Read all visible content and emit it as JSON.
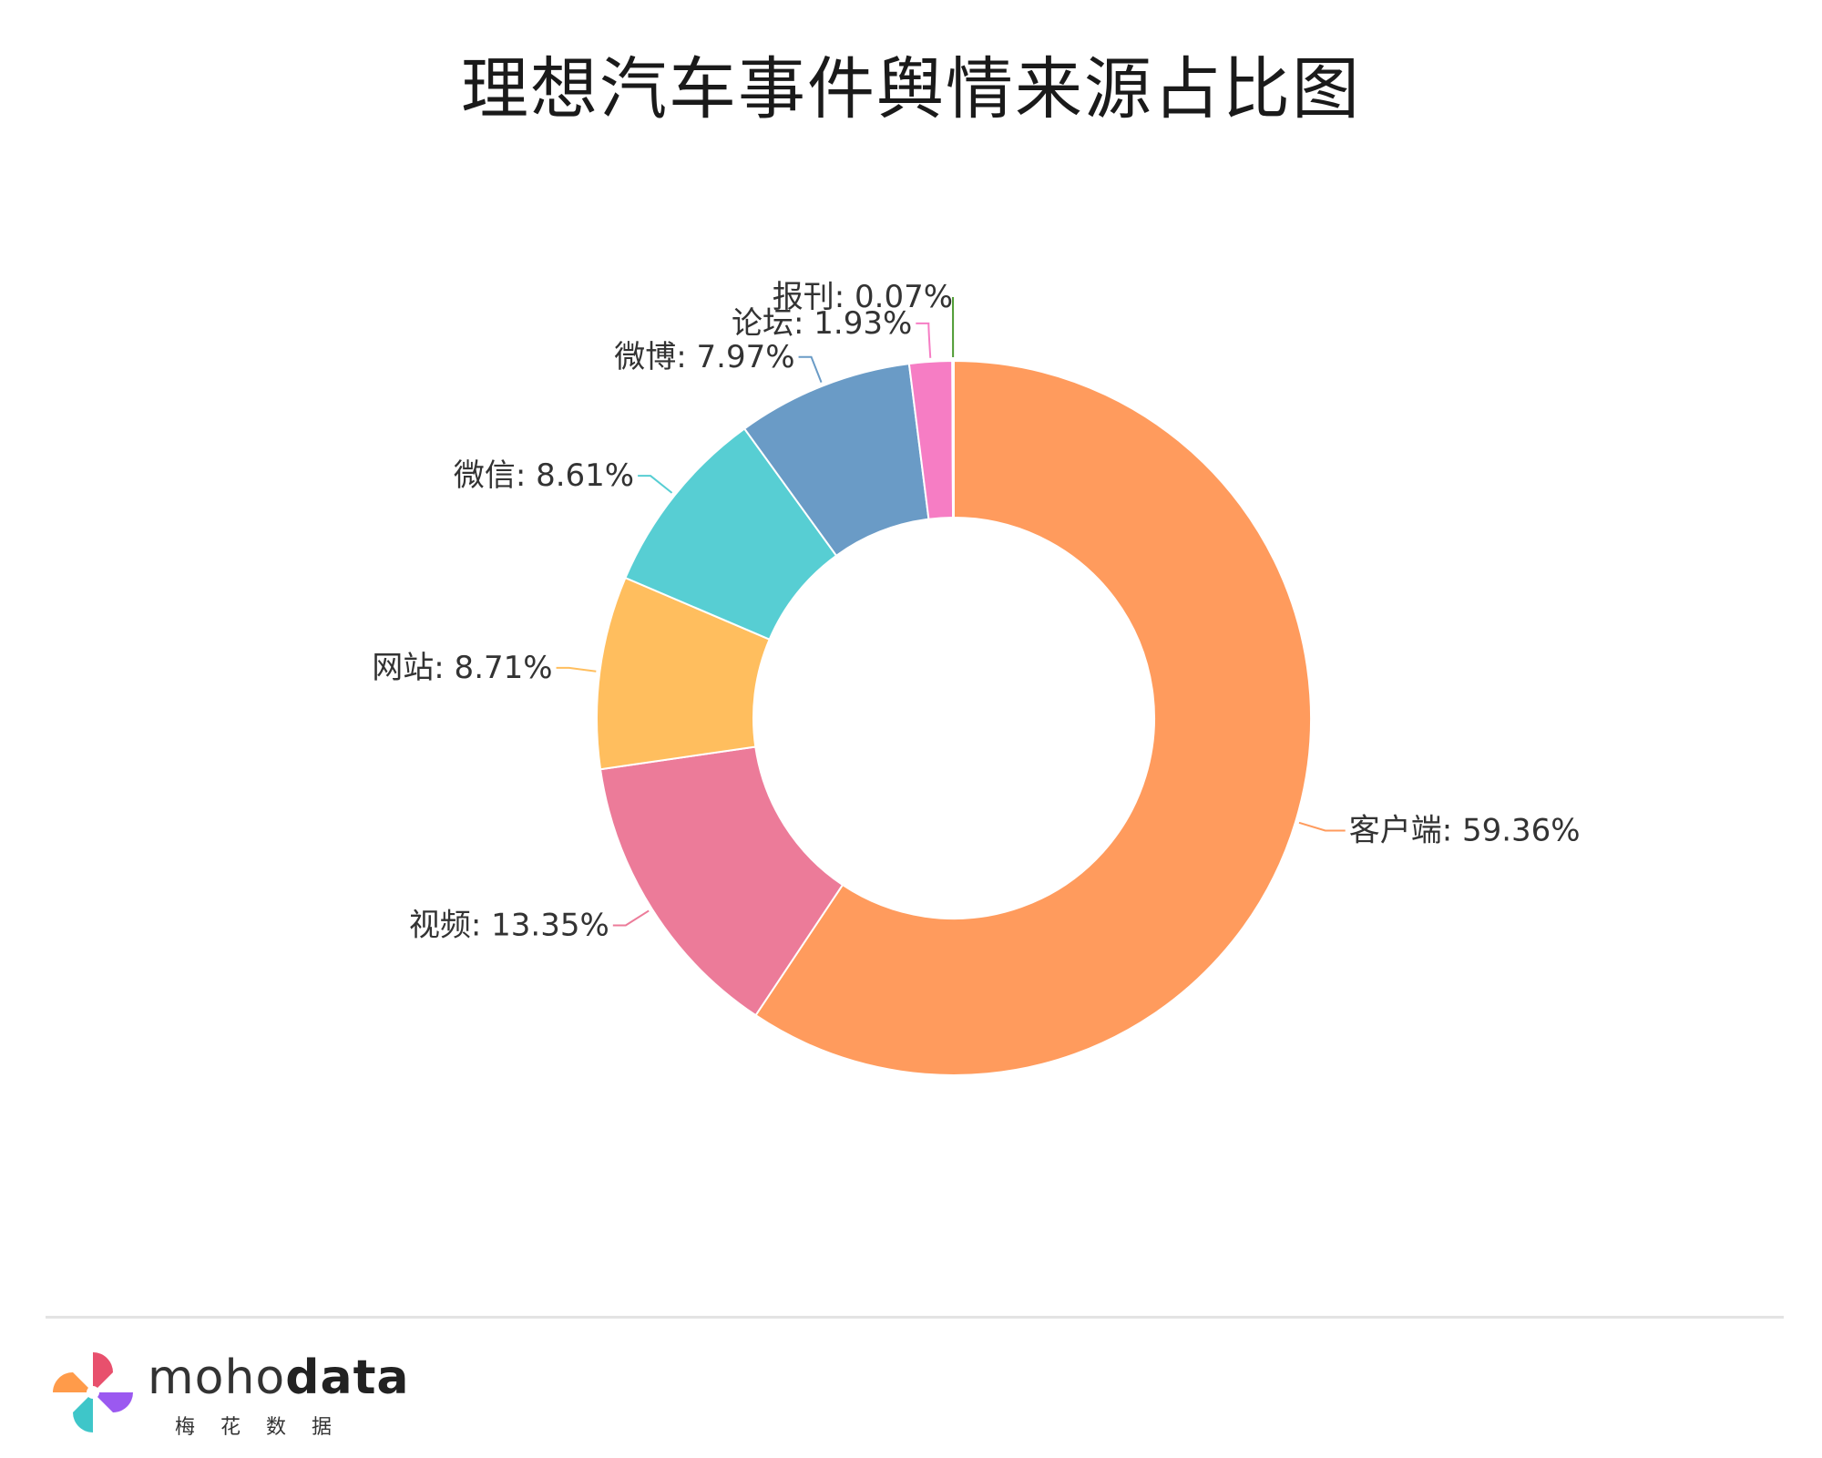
{
  "title": "理想汽车事件舆情来源占比图",
  "chart_data": {
    "type": "pie",
    "donut": true,
    "slices": [
      {
        "name": "客户端",
        "value": 59.36,
        "label": "客户端: 59.36%",
        "color": "#FF9B5D",
        "labelSide": "right"
      },
      {
        "name": "视频",
        "value": 13.35,
        "label": "视频: 13.35%",
        "color": "#EC7B99",
        "labelSide": "left"
      },
      {
        "name": "网站",
        "value": 8.71,
        "label": "网站: 8.71%",
        "color": "#FFBE5E",
        "labelSide": "left"
      },
      {
        "name": "微信",
        "value": 8.61,
        "label": "微信: 8.61%",
        "color": "#57CED3",
        "labelSide": "left"
      },
      {
        "name": "微博",
        "value": 7.97,
        "label": "微博: 7.97%",
        "color": "#6A9BC6",
        "labelSide": "left"
      },
      {
        "name": "论坛",
        "value": 1.93,
        "label": "论坛: 1.93%",
        "color": "#F67DC4",
        "labelSide": "left"
      },
      {
        "name": "报刊",
        "value": 0.07,
        "label": "报刊: 0.07%",
        "color": "#4E9B33",
        "labelSide": "left"
      }
    ]
  },
  "brand": {
    "name_light": "moho",
    "name_bold": "data",
    "subtitle": "梅花数据"
  }
}
